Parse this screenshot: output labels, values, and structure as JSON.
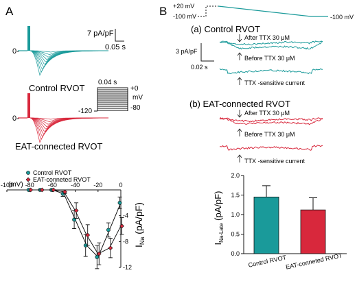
{
  "colors": {
    "teal": "#1a9a9a",
    "red": "#d8283c",
    "black": "#111111",
    "grey": "#333333"
  },
  "panel_a": {
    "label": "A",
    "scale_label": "7 pA/pF",
    "time_label": "0.05 s",
    "zero_label": "0-",
    "control_caption": "Control RVOT",
    "eat_caption": "EAT-connected RVOT",
    "protocol": {
      "duration": "0.04 s",
      "top": "+0",
      "unit": "mV",
      "bottom": "-80",
      "hold": "-120"
    }
  },
  "panel_b": {
    "label": "B",
    "protocol": {
      "top": "+20 mV",
      "hold": "-100 mV",
      "end": "-100 mV"
    },
    "control_title": "(a) Control RVOT",
    "eat_title": "(b) EAT-connected RVOT",
    "after_label": "After TTX 30 μM",
    "before_label": "Before TTX 30 μM",
    "ttx_label": "TTX -sensitive current",
    "scale_label": "3 pA/pF",
    "time_label": "0.02 s"
  },
  "chart_data": [
    {
      "type": "line",
      "title": "",
      "xlabel": "(mV)",
      "ylabel": "INa (pA/pF)",
      "xlim": [
        -100,
        0
      ],
      "ylim": [
        -12,
        0
      ],
      "xticks": [
        "-100",
        "-80",
        "-60",
        "-40",
        "-20",
        "0"
      ],
      "yticks": [
        "-4",
        "-8",
        "-12"
      ],
      "legend": "top-left",
      "x": [
        -80,
        -70,
        -60,
        -50,
        -40,
        -30,
        -20,
        -10,
        0
      ],
      "series": [
        {
          "name": "Control RVOT",
          "marker": "circle",
          "color": "#1a9a9a",
          "values": [
            0,
            0,
            0,
            -0.6,
            -4.6,
            -8.6,
            -10.4,
            -6.2,
            -2.0
          ],
          "errors": [
            0,
            0,
            0,
            0.4,
            1.4,
            1.7,
            1.8,
            1.1,
            0.9
          ]
        },
        {
          "name": "EAT-conneted RVOT",
          "marker": "diamond",
          "color": "#d8283c",
          "values": [
            0,
            0,
            0,
            -0.3,
            -3.2,
            -7.0,
            -9.9,
            -9.0,
            -5.6
          ],
          "errors": [
            0,
            0,
            0,
            0.3,
            1.2,
            1.6,
            1.7,
            1.5,
            1.3
          ]
        }
      ]
    },
    {
      "type": "bar",
      "title": "",
      "xlabel": "",
      "ylabel": "INa-Late (pA/pF)",
      "ylim": [
        0,
        2.0
      ],
      "yticks": [
        "0.0",
        "0.5",
        "1.0",
        "1.5",
        "2.0"
      ],
      "categories": [
        "Control RVOT",
        "EAT-conneted RVOT"
      ],
      "values": [
        1.45,
        1.12
      ],
      "errors": [
        0.29,
        0.31
      ],
      "colors": [
        "#1a9a9a",
        "#d8283c"
      ]
    }
  ]
}
